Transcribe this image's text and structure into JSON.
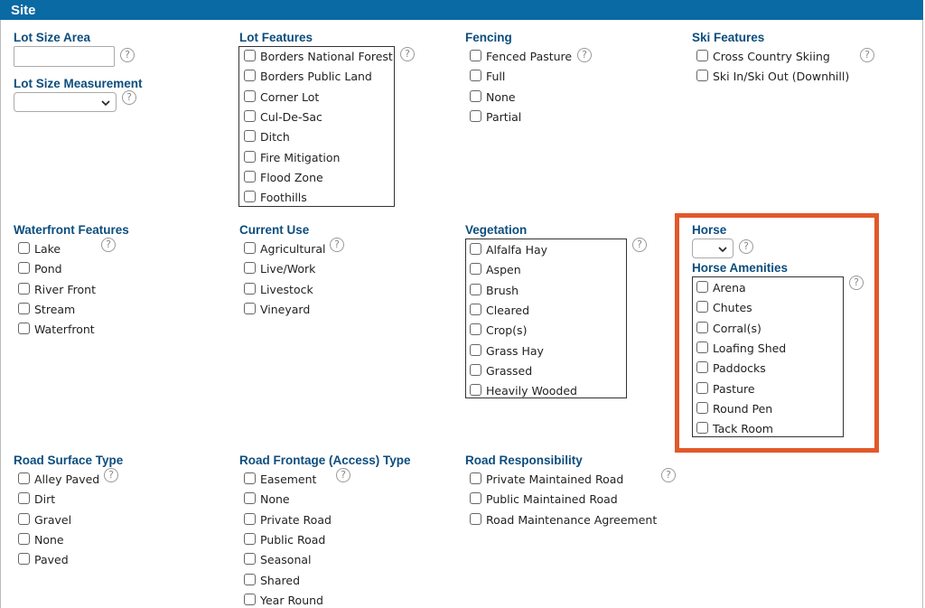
{
  "header": {
    "title": "Site"
  },
  "help": "?",
  "sections": [
    {
      "label": "Lot Size Area"
    },
    {
      "label": "Lot Size Measurement"
    },
    {
      "label": "Lot Features",
      "options": [
        "Borders National Forest",
        "Borders Public Land",
        "Corner Lot",
        "Cul-De-Sac",
        "Ditch",
        "Fire Mitigation",
        "Flood Zone",
        "Foothills"
      ]
    },
    {
      "label": "Fencing",
      "options": [
        "Fenced Pasture",
        "Full",
        "None",
        "Partial"
      ]
    },
    {
      "label": "Ski Features",
      "options": [
        "Cross Country Skiing",
        "Ski In/Ski Out (Downhill)"
      ]
    },
    {
      "label": "Waterfront Features",
      "options": [
        "Lake",
        "Pond",
        "River Front",
        "Stream",
        "Waterfront"
      ]
    },
    {
      "label": "Current Use",
      "options": [
        "Agricultural",
        "Live/Work",
        "Livestock",
        "Vineyard"
      ]
    },
    {
      "label": "Vegetation",
      "options": [
        "Alfalfa Hay",
        "Aspen",
        "Brush",
        "Cleared",
        "Crop(s)",
        "Grass Hay",
        "Grassed",
        "Heavily Wooded"
      ]
    },
    {
      "label": "Horse"
    },
    {
      "label": "Horse Amenities",
      "options": [
        "Arena",
        "Chutes",
        "Corral(s)",
        "Loafing Shed",
        "Paddocks",
        "Pasture",
        "Round Pen",
        "Tack Room"
      ]
    },
    {
      "label": "Road Surface Type",
      "options": [
        "Alley Paved",
        "Dirt",
        "Gravel",
        "None",
        "Paved"
      ]
    },
    {
      "label": "Road Frontage (Access) Type",
      "options": [
        "Easement",
        "None",
        "Private Road",
        "Public Road",
        "Seasonal",
        "Shared",
        "Year Round"
      ]
    },
    {
      "label": "Road Responsibility",
      "options": [
        "Private Maintained Road",
        "Public Maintained Road",
        "Road Maintenance Agreement"
      ]
    }
  ]
}
